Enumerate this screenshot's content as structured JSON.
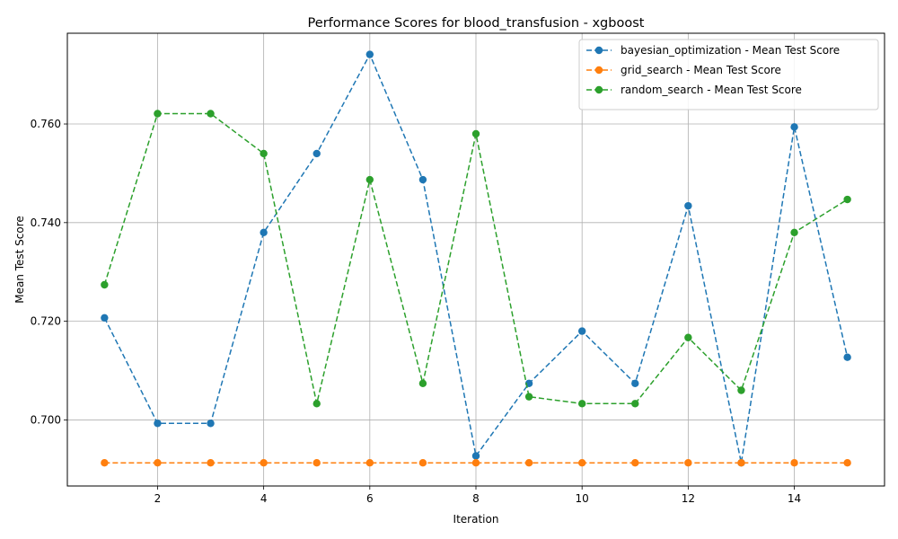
{
  "chart_data": {
    "type": "line",
    "title": "Performance Scores for blood_transfusion - xgboost",
    "xlabel": "Iteration",
    "ylabel": "Mean Test Score",
    "xlim": [
      0.3,
      15.7
    ],
    "ylim": [
      0.6866,
      0.7784
    ],
    "xticks": [
      2,
      4,
      6,
      8,
      10,
      12,
      14
    ],
    "yticks": [
      0.7,
      0.72,
      0.74,
      0.76
    ],
    "ytick_labels": [
      "0.700",
      "0.720",
      "0.740",
      "0.760"
    ],
    "grid": true,
    "legend_position": "top-right",
    "x": [
      1,
      2,
      3,
      4,
      5,
      6,
      7,
      8,
      9,
      10,
      11,
      12,
      13,
      14,
      15
    ],
    "series": [
      {
        "name": "bayesian_optimization - Mean Test Score",
        "color": "#1f77b4",
        "values": [
          0.7207,
          0.6993,
          0.6993,
          0.738,
          0.754,
          0.7741,
          0.7487,
          0.6927,
          0.7074,
          0.718,
          0.7074,
          0.7434,
          0.6913,
          0.7594,
          0.7127
        ]
      },
      {
        "name": "grid_search - Mean Test Score",
        "color": "#ff7f0e",
        "values": [
          0.6913,
          0.6913,
          0.6913,
          0.6913,
          0.6913,
          0.6913,
          0.6913,
          0.6913,
          0.6913,
          0.6913,
          0.6913,
          0.6913,
          0.6913,
          0.6913,
          0.6913
        ]
      },
      {
        "name": "random_search - Mean Test Score",
        "color": "#2ca02c",
        "values": [
          0.7274,
          0.7621,
          0.7621,
          0.754,
          0.7033,
          0.7487,
          0.7074,
          0.758,
          0.7047,
          0.7033,
          0.7033,
          0.7167,
          0.706,
          0.738,
          0.7447
        ]
      }
    ]
  }
}
